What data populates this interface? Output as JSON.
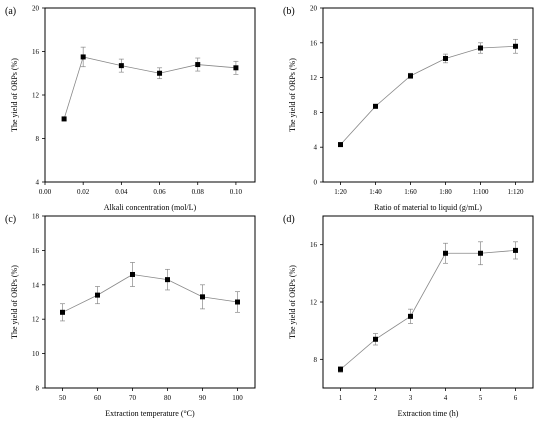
{
  "chart_data": [
    {
      "panel": "(a)",
      "type": "line",
      "xlabel": "Alkali concentration (mol/L)",
      "ylabel": "The yield of ORPs (%)",
      "xlim": [
        0.0,
        0.11
      ],
      "ylim": [
        4,
        20
      ],
      "xticks": [
        0.0,
        0.02,
        0.04,
        0.06,
        0.08,
        0.1
      ],
      "xtick_labels": [
        "0.00",
        "0.02",
        "0.04",
        "0.06",
        "0.08",
        "0.10"
      ],
      "yticks": [
        4,
        8,
        12,
        16,
        20
      ],
      "ytick_labels": [
        "4",
        "8",
        "12",
        "16",
        "20"
      ],
      "series": [
        {
          "x": [
            0.01,
            0.02,
            0.04,
            0.06,
            0.08,
            0.1
          ],
          "y": [
            9.8,
            15.5,
            14.7,
            14.0,
            14.8,
            14.5
          ],
          "err": [
            0.0,
            0.9,
            0.6,
            0.5,
            0.6,
            0.6
          ]
        }
      ]
    },
    {
      "panel": "(b)",
      "type": "line",
      "xlabel": "Ratio of material to liquid (g/mL)",
      "ylabel": "The yield of ORPs (%)",
      "xlim": [
        0.5,
        6.5
      ],
      "ylim": [
        0,
        20
      ],
      "categorical_x": true,
      "xtick_labels": [
        "1:20",
        "1:40",
        "1:60",
        "1:80",
        "1:100",
        "1:120"
      ],
      "yticks": [
        0,
        4,
        8,
        12,
        16,
        20
      ],
      "ytick_labels": [
        "0",
        "4",
        "8",
        "12",
        "16",
        "20"
      ],
      "series": [
        {
          "x": [
            1,
            2,
            3,
            4,
            5,
            6
          ],
          "y": [
            4.3,
            8.7,
            12.2,
            14.2,
            15.4,
            15.6
          ],
          "err": [
            0.1,
            0.15,
            0.3,
            0.5,
            0.6,
            0.8
          ]
        }
      ]
    },
    {
      "panel": "(c)",
      "type": "line",
      "xlabel": "Extraction temperature (°C)",
      "ylabel": "The yield of ORPs (%)",
      "xlim": [
        45,
        105
      ],
      "ylim": [
        8,
        18
      ],
      "xticks": [
        50,
        60,
        70,
        80,
        90,
        100
      ],
      "xtick_labels": [
        "50",
        "60",
        "70",
        "80",
        "90",
        "100"
      ],
      "yticks": [
        8,
        10,
        12,
        14,
        16,
        18
      ],
      "ytick_labels": [
        "8",
        "10",
        "12",
        "14",
        "16",
        "18"
      ],
      "series": [
        {
          "x": [
            50,
            60,
            70,
            80,
            90,
            100
          ],
          "y": [
            12.4,
            13.4,
            14.6,
            14.3,
            13.3,
            13.0
          ],
          "err": [
            0.5,
            0.5,
            0.7,
            0.6,
            0.7,
            0.6
          ]
        }
      ]
    },
    {
      "panel": "(d)",
      "type": "line",
      "xlabel": "Extraction time (h)",
      "ylabel": "The yield of ORPs (%)",
      "xlim": [
        0.5,
        6.5
      ],
      "ylim": [
        6,
        18
      ],
      "xticks": [
        1,
        2,
        3,
        4,
        5,
        6
      ],
      "xtick_labels": [
        "1",
        "2",
        "3",
        "4",
        "5",
        "6"
      ],
      "yticks": [
        8,
        12,
        16
      ],
      "ytick_labels": [
        "8",
        "12",
        "16"
      ],
      "series": [
        {
          "x": [
            1,
            2,
            3,
            4,
            5,
            6
          ],
          "y": [
            7.3,
            9.4,
            11.0,
            15.4,
            15.4,
            15.6
          ],
          "err": [
            0.2,
            0.4,
            0.5,
            0.7,
            0.8,
            0.6
          ]
        }
      ]
    }
  ]
}
